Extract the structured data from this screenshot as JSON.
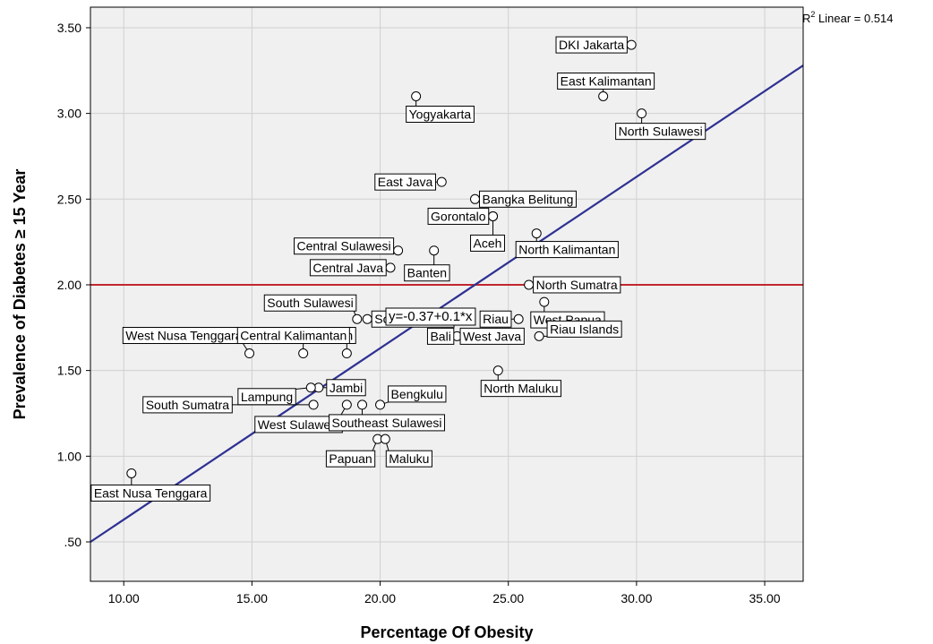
{
  "chart_data": {
    "type": "scatter",
    "title": "",
    "xlabel": "Percentage Of Obesity",
    "ylabel": "Prevalence of Diabetes ≥ 15 Year",
    "xlim": [
      8.7,
      36.5
    ],
    "ylim": [
      0.27,
      3.62
    ],
    "x_ticks": [
      10,
      15,
      20,
      25,
      30,
      35
    ],
    "x_tick_labels": [
      "10.00",
      "15.00",
      "20.00",
      "25.00",
      "30.00",
      "35.00"
    ],
    "y_ticks": [
      0.5,
      1.0,
      1.5,
      2.0,
      2.5,
      3.0,
      3.5
    ],
    "y_tick_labels": [
      ".50",
      "1.00",
      "1.50",
      "2.00",
      "2.50",
      "3.00",
      "3.50"
    ],
    "grid": true,
    "points": [
      {
        "label": "DKI Jakarta",
        "x": 29.8,
        "y": 3.4
      },
      {
        "label": "East Kalimantan",
        "x": 28.7,
        "y": 3.1
      },
      {
        "label": "North Sulawesi",
        "x": 30.2,
        "y": 3.0
      },
      {
        "label": "Yogyakarta",
        "x": 21.4,
        "y": 3.1
      },
      {
        "label": "East Java",
        "x": 22.4,
        "y": 2.6
      },
      {
        "label": "Bangka Belitung",
        "x": 23.7,
        "y": 2.5
      },
      {
        "label": "Gorontalo",
        "x": 24.4,
        "y": 2.4
      },
      {
        "label": "Aceh",
        "x": 24.4,
        "y": 2.4
      },
      {
        "label": "North Kalimantan",
        "x": 26.1,
        "y": 2.3
      },
      {
        "label": "Central Sulawesi",
        "x": 20.7,
        "y": 2.2
      },
      {
        "label": "Banten",
        "x": 22.1,
        "y": 2.2
      },
      {
        "label": "Central Java",
        "x": 20.4,
        "y": 2.1
      },
      {
        "label": "North Sumatra",
        "x": 25.8,
        "y": 2.0
      },
      {
        "label": "South Sulawesi",
        "x": 19.1,
        "y": 1.8
      },
      {
        "label": "South Borneo",
        "x": 19.5,
        "y": 1.8
      },
      {
        "label": "Riau",
        "x": 25.4,
        "y": 1.8
      },
      {
        "label": "West Papua",
        "x": 26.4,
        "y": 1.9
      },
      {
        "label": "West Nusa Tenggara",
        "x": 14.9,
        "y": 1.6
      },
      {
        "label": "West Kalimantan",
        "x": 17.0,
        "y": 1.6
      },
      {
        "label": "Bali",
        "x": 23.0,
        "y": 1.7
      },
      {
        "label": "West Java",
        "x": 23.3,
        "y": 1.7
      },
      {
        "label": "Riau Islands",
        "x": 26.2,
        "y": 1.7
      },
      {
        "label": "Central Kalimantan",
        "x": 18.7,
        "y": 1.6
      },
      {
        "label": "North Maluku",
        "x": 24.6,
        "y": 1.5
      },
      {
        "label": "Jambi",
        "x": 17.6,
        "y": 1.4
      },
      {
        "label": "Lampung",
        "x": 17.3,
        "y": 1.4
      },
      {
        "label": "South Sumatra",
        "x": 17.4,
        "y": 1.3
      },
      {
        "label": "Bengkulu",
        "x": 20.0,
        "y": 1.3
      },
      {
        "label": "West Sulawesi",
        "x": 18.7,
        "y": 1.3
      },
      {
        "label": "Southeast Sulawesi",
        "x": 19.3,
        "y": 1.3
      },
      {
        "label": "Papuan",
        "x": 19.9,
        "y": 1.1
      },
      {
        "label": "Maluku",
        "x": 20.2,
        "y": 1.1
      },
      {
        "label": "East Nusa Tenggara",
        "x": 10.3,
        "y": 0.9
      }
    ],
    "fit_line": {
      "type": "linear",
      "intercept": -0.37,
      "slope": 0.1,
      "label": "y=-0.37+0.1*x",
      "color": "#2e3192"
    },
    "reference_line": {
      "y": 2.0,
      "color": "#c1272d"
    },
    "r2_label": {
      "prefix": "R",
      "sup": "2",
      "suffix": " Linear = 0.514"
    }
  }
}
